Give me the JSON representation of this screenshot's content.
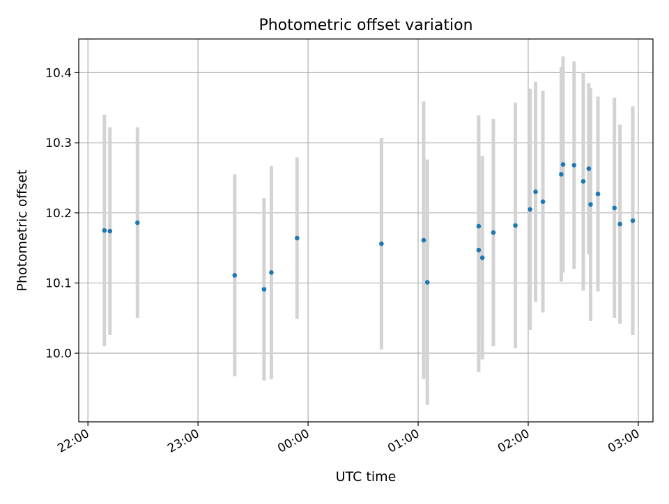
{
  "chart_data": {
    "type": "scatter",
    "title": "Photometric offset variation",
    "xlabel": "UTC time",
    "ylabel": "Photometric offset",
    "x_axis_kind": "time",
    "x_ticks": [
      "22:00",
      "23:00",
      "00:00",
      "01:00",
      "02:00",
      "03:00"
    ],
    "x_range": [
      "21:55",
      "03:08"
    ],
    "y_ticks": [
      "10.0",
      "10.1",
      "10.2",
      "10.3",
      "10.4"
    ],
    "ylim": [
      9.902,
      10.448
    ],
    "grid": true,
    "colors": {
      "marker": "#1f77b4",
      "errorbar": "#d3d3d3",
      "grid": "#b0b0b0"
    },
    "series": [
      {
        "points": [
          {
            "x": "22:09",
            "y": 10.175,
            "err": 0.165
          },
          {
            "x": "22:12",
            "y": 10.174,
            "err": 0.148
          },
          {
            "x": "22:27",
            "y": 10.186,
            "err": 0.136
          },
          {
            "x": "23:20",
            "y": 10.111,
            "err": 0.144
          },
          {
            "x": "23:36",
            "y": 10.091,
            "err": 0.13
          },
          {
            "x": "23:40",
            "y": 10.115,
            "err": 0.152
          },
          {
            "x": "23:54",
            "y": 10.164,
            "err": 0.115
          },
          {
            "x": "00:40",
            "y": 10.156,
            "err": 0.151
          },
          {
            "x": "01:03",
            "y": 10.161,
            "err": 0.198
          },
          {
            "x": "01:05",
            "y": 10.101,
            "err": 0.175
          },
          {
            "x": "01:33",
            "y": 10.147,
            "err": 0.174
          },
          {
            "x": "01:33",
            "y": 10.181,
            "err": 0.158
          },
          {
            "x": "01:35",
            "y": 10.136,
            "err": 0.145
          },
          {
            "x": "01:41",
            "y": 10.172,
            "err": 0.162
          },
          {
            "x": "01:53",
            "y": 10.182,
            "err": 0.175
          },
          {
            "x": "02:01",
            "y": 10.205,
            "err": 0.172
          },
          {
            "x": "02:04",
            "y": 10.23,
            "err": 0.157
          },
          {
            "x": "02:08",
            "y": 10.216,
            "err": 0.158
          },
          {
            "x": "02:18",
            "y": 10.255,
            "err": 0.153
          },
          {
            "x": "02:19",
            "y": 10.269,
            "err": 0.154
          },
          {
            "x": "02:25",
            "y": 10.268,
            "err": 0.148
          },
          {
            "x": "02:30",
            "y": 10.245,
            "err": 0.156
          },
          {
            "x": "02:33",
            "y": 10.263,
            "err": 0.122
          },
          {
            "x": "02:34",
            "y": 10.212,
            "err": 0.166
          },
          {
            "x": "02:38",
            "y": 10.227,
            "err": 0.139
          },
          {
            "x": "02:47",
            "y": 10.207,
            "err": 0.157
          },
          {
            "x": "02:50",
            "y": 10.184,
            "err": 0.142
          },
          {
            "x": "02:57",
            "y": 10.189,
            "err": 0.163
          }
        ]
      }
    ]
  }
}
